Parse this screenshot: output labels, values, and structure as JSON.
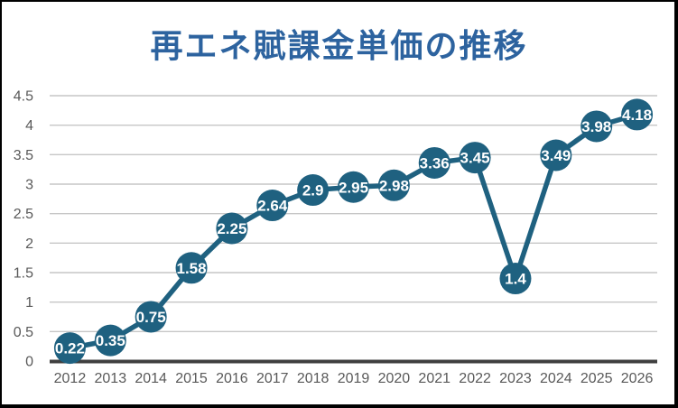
{
  "chart_data": {
    "type": "line",
    "title": "再エネ賦課金単価の推移",
    "categories": [
      "2012",
      "2013",
      "2014",
      "2015",
      "2016",
      "2017",
      "2018",
      "2019",
      "2020",
      "2021",
      "2022",
      "2023",
      "2024",
      "2025",
      "2026"
    ],
    "values": [
      0.22,
      0.35,
      0.75,
      1.58,
      2.25,
      2.64,
      2.9,
      2.95,
      2.98,
      3.36,
      3.45,
      1.4,
      3.49,
      3.98,
      4.18
    ],
    "data_labels": [
      "0.22",
      "0.35",
      "0.75",
      "1.58",
      "2.25",
      "2.64",
      "2.9",
      "2.95",
      "2.98",
      "3.36",
      "3.45",
      "1.4",
      "3.49",
      "3.98",
      "4.18"
    ],
    "xlabel": "",
    "ylabel": "",
    "ylim": [
      0,
      4.5
    ],
    "ytick_step": 0.5,
    "grid": true,
    "legend": "none",
    "colors": {
      "series": "#1F6180",
      "title": "#2D639F",
      "tick_label": "#595959",
      "gridline": "#C6C6C6",
      "axis_line": "#3F3F3F",
      "data_label": "#FFFFFF",
      "page_border": "#000000",
      "background": "#FFFFFF"
    }
  }
}
